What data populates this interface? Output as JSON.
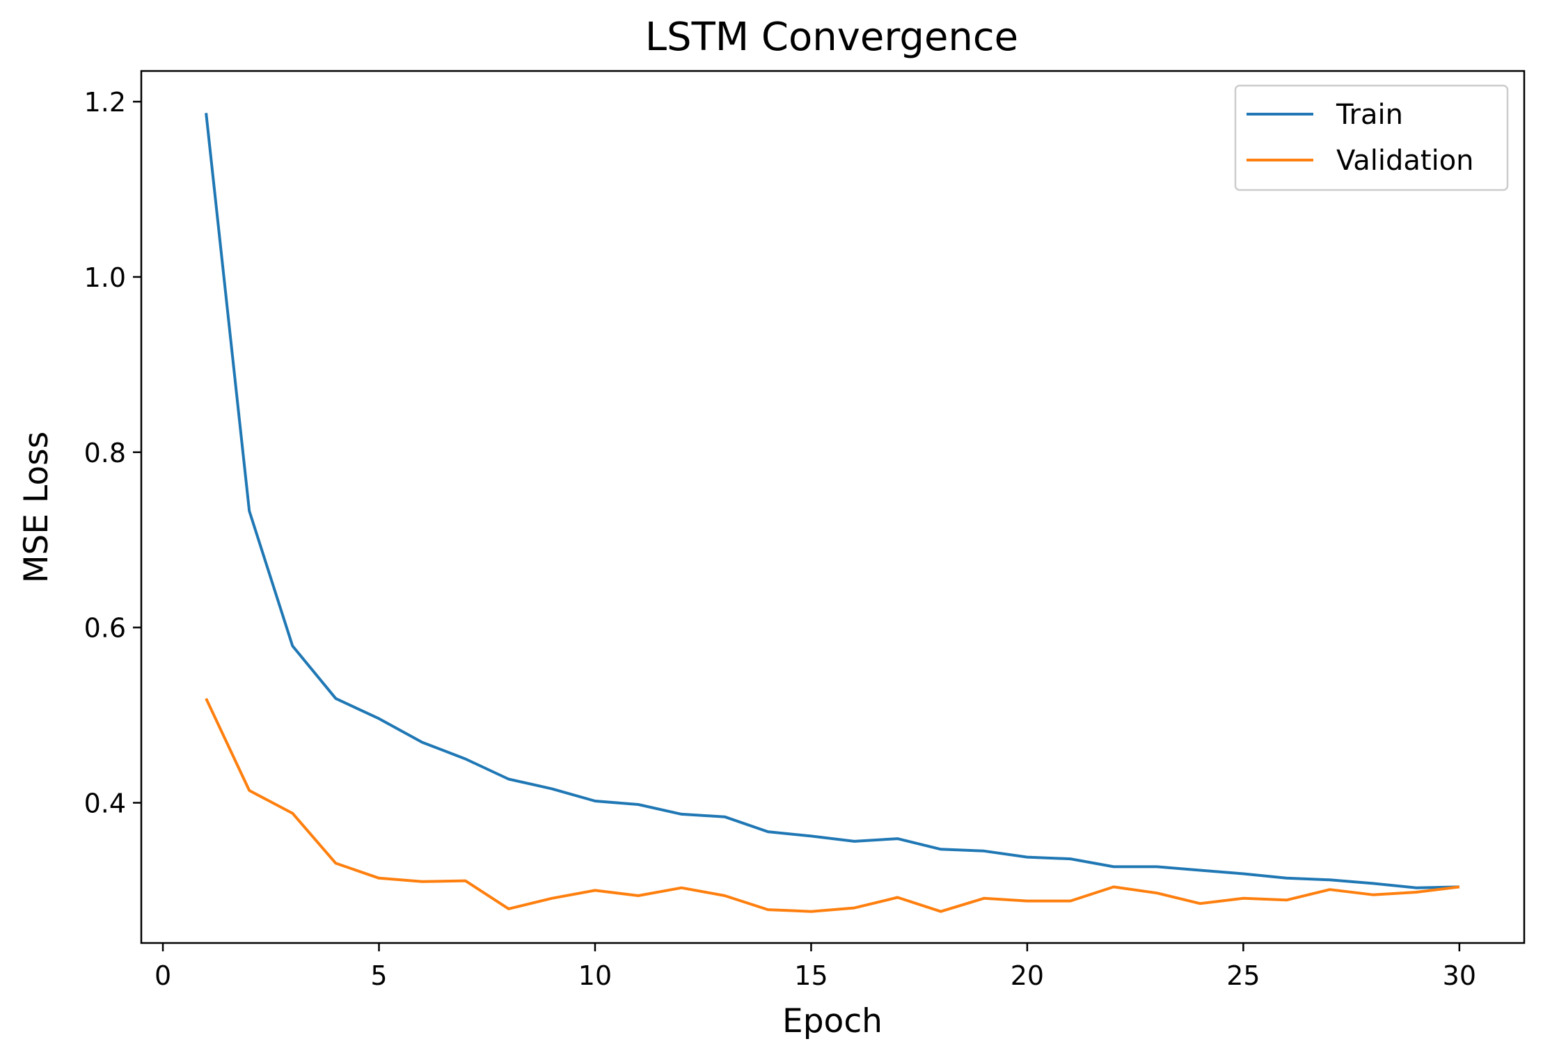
{
  "chart_data": {
    "type": "line",
    "title": "LSTM Convergence",
    "xlabel": "Epoch",
    "ylabel": "MSE Loss",
    "xlim": [
      -0.5,
      31.5
    ],
    "ylim": [
      0.24,
      1.235
    ],
    "xticks": [
      0,
      5,
      10,
      15,
      20,
      25,
      30
    ],
    "yticks": [
      0.4,
      0.6,
      0.8,
      1.0,
      1.2
    ],
    "ytick_labels": [
      "0.4",
      "0.6",
      "0.8",
      "1.0",
      "1.2"
    ],
    "grid": false,
    "legend_position": "top-right",
    "x": [
      1,
      2,
      3,
      4,
      5,
      6,
      7,
      8,
      9,
      10,
      11,
      12,
      13,
      14,
      15,
      16,
      17,
      18,
      19,
      20,
      21,
      22,
      23,
      24,
      25,
      26,
      27,
      28,
      29,
      30
    ],
    "series": [
      {
        "name": "Train",
        "color": "#1f77b4",
        "values": [
          1.187,
          0.733,
          0.579,
          0.519,
          0.496,
          0.469,
          0.45,
          0.427,
          0.416,
          0.402,
          0.398,
          0.387,
          0.384,
          0.367,
          0.362,
          0.356,
          0.359,
          0.347,
          0.345,
          0.338,
          0.336,
          0.327,
          0.327,
          0.323,
          0.319,
          0.314,
          0.312,
          0.308,
          0.303,
          0.304
        ]
      },
      {
        "name": "Validation",
        "color": "#ff7f0e",
        "values": [
          0.519,
          0.414,
          0.388,
          0.331,
          0.314,
          0.31,
          0.311,
          0.279,
          0.291,
          0.3,
          0.294,
          0.303,
          0.294,
          0.278,
          0.276,
          0.28,
          0.292,
          0.276,
          0.291,
          0.288,
          0.288,
          0.304,
          0.297,
          0.285,
          0.291,
          0.289,
          0.301,
          0.295,
          0.298,
          0.304
        ]
      }
    ]
  }
}
